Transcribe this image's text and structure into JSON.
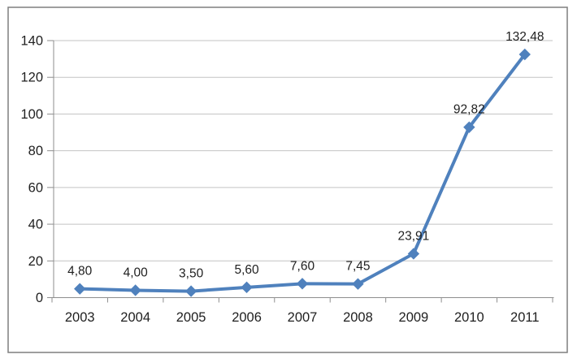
{
  "chart_data": {
    "type": "line",
    "title": "",
    "xlabel": "",
    "ylabel": "",
    "categories": [
      "2003",
      "2004",
      "2005",
      "2006",
      "2007",
      "2008",
      "2009",
      "2010",
      "2011"
    ],
    "series": [
      {
        "name": "",
        "values": [
          4.8,
          4.0,
          3.5,
          5.6,
          7.6,
          7.45,
          23.91,
          92.82,
          132.48
        ],
        "point_labels": [
          "4,80",
          "4,00",
          "3,50",
          "5,60",
          "7,60",
          "7,45",
          "23,91",
          "92,82",
          "132,48"
        ]
      }
    ],
    "ylim": [
      0,
      140
    ],
    "y_ticks": [
      0,
      20,
      40,
      60,
      80,
      100,
      120,
      140
    ],
    "y_tick_labels": [
      "0",
      "20",
      "40",
      "60",
      "80",
      "100",
      "120",
      "140"
    ],
    "grid": true,
    "legend": "none",
    "marker": "diamond",
    "colors": {
      "series": "#4f81bd",
      "gridline": "#c3c3c3",
      "axis": "#8e8e8e",
      "text": "#1f1f1f",
      "frame_border": "#7f7f7f",
      "background": "#ffffff"
    }
  }
}
